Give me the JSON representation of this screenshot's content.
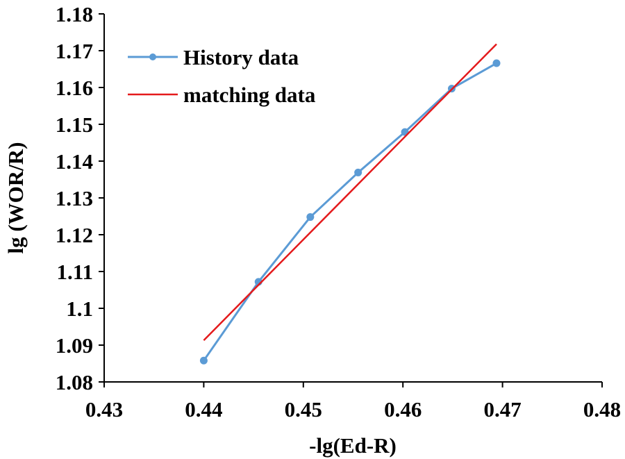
{
  "chart_data": {
    "type": "line",
    "title": "",
    "xlabel": "-lg(Ed-R)",
    "ylabel": "lg (WOR/R)",
    "xlim": [
      0.43,
      0.48
    ],
    "ylim": [
      1.08,
      1.18
    ],
    "x_ticks": [
      "0.43",
      "0.44",
      "0.45",
      "0.46",
      "0.47",
      "0.48"
    ],
    "y_ticks": [
      "1.08",
      "1.09",
      "1.1",
      "1.11",
      "1.12",
      "1.13",
      "1.14",
      "1.15",
      "1.16",
      "1.17",
      "1.18"
    ],
    "grid": false,
    "legend_position": "top-left",
    "series": [
      {
        "name": "History data",
        "color": "#5B9BD5",
        "marker": "circle",
        "x": [
          0.44,
          0.4455,
          0.4507,
          0.4555,
          0.4602,
          0.4649,
          0.4694
        ],
        "y": [
          1.0858,
          1.1072,
          1.1248,
          1.1369,
          1.1479,
          1.1597,
          1.1666
        ]
      },
      {
        "name": "matching data",
        "color": "#E41A1C",
        "marker": "none",
        "x": [
          0.44,
          0.4694
        ],
        "y": [
          1.0913,
          1.1718
        ]
      }
    ]
  }
}
